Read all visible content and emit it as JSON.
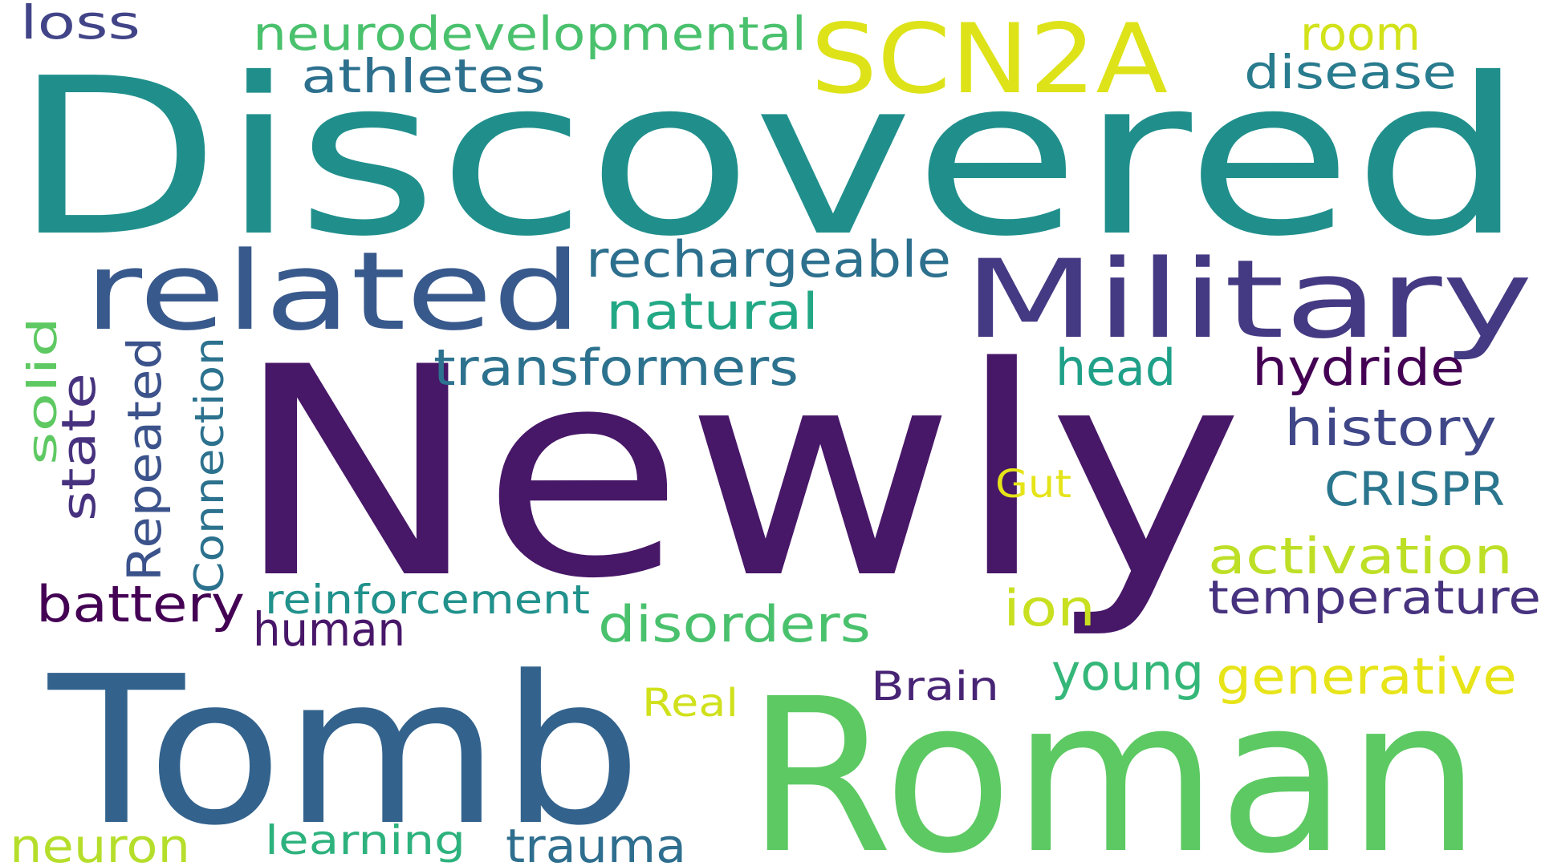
{
  "words": [
    {
      "text": "Newly",
      "color": "#471768"
    },
    {
      "text": "Discovered",
      "color": "#208f8c"
    },
    {
      "text": "Roman",
      "color": "#5dc963"
    },
    {
      "text": "Tomb",
      "color": "#33638d"
    },
    {
      "text": "Military",
      "color": "#443a83"
    },
    {
      "text": "related",
      "color": "#38598c"
    },
    {
      "text": "SCN2A",
      "color": "#dde318"
    },
    {
      "text": "neurodevelopmental",
      "color": "#4ac16d"
    },
    {
      "text": "athletes",
      "color": "#2d708e"
    },
    {
      "text": "loss",
      "color": "#414487"
    },
    {
      "text": "room",
      "color": "#d2e21b"
    },
    {
      "text": "disease",
      "color": "#297b8e"
    },
    {
      "text": "rechargeable",
      "color": "#2d708e"
    },
    {
      "text": "natural",
      "color": "#22a884"
    },
    {
      "text": "transformers",
      "color": "#2c728e"
    },
    {
      "text": "head",
      "color": "#1fa088"
    },
    {
      "text": "hydride",
      "color": "#440154"
    },
    {
      "text": "history",
      "color": "#3f4788"
    },
    {
      "text": "CRISPR",
      "color": "#2a768e"
    },
    {
      "text": "Gut",
      "color": "#e5e419"
    },
    {
      "text": "activation",
      "color": "#bddf26"
    },
    {
      "text": "temperature",
      "color": "#46327e"
    },
    {
      "text": "ion",
      "color": "#c8e020"
    },
    {
      "text": "disorders",
      "color": "#4ac16d"
    },
    {
      "text": "battery",
      "color": "#440154"
    },
    {
      "text": "reinforcement",
      "color": "#21918c"
    },
    {
      "text": "human",
      "color": "#481769"
    },
    {
      "text": "young",
      "color": "#35b779"
    },
    {
      "text": "generative",
      "color": "#e7e419"
    },
    {
      "text": "Brain",
      "color": "#482475"
    },
    {
      "text": "Real",
      "color": "#d0e11c"
    },
    {
      "text": "neuron",
      "color": "#b5de2b"
    },
    {
      "text": "learning",
      "color": "#2db27d"
    },
    {
      "text": "trauma",
      "color": "#2e6e8e"
    },
    {
      "text": "solid",
      "color": "#5ec962"
    },
    {
      "text": "state",
      "color": "#46327e"
    },
    {
      "text": "Repeated",
      "color": "#3b528b"
    },
    {
      "text": "Connection",
      "color": "#2c728e"
    }
  ]
}
